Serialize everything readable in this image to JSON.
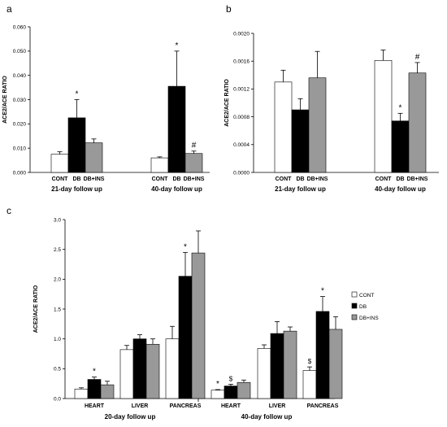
{
  "colors": {
    "CONT": "#ffffff",
    "DB": "#000000",
    "DB+INS": "#999999"
  },
  "chart_data": [
    {
      "panel": "a",
      "type": "bar",
      "ylabel": "ACE2/ACE RATIO",
      "ylim": [
        0,
        0.06
      ],
      "yticks": [
        "0.000",
        "0.010",
        "0.020",
        "0.030",
        "0.040",
        "0.050",
        "0.060"
      ],
      "group_labels": [
        "21-day follow up",
        "40-day follow up"
      ],
      "bar_labels": [
        "CONT",
        "DB",
        "DB+INS"
      ],
      "series": [
        {
          "name": "CONT",
          "values": [
            0.0075,
            0.006
          ],
          "errors": [
            0.001,
            0.0004
          ]
        },
        {
          "name": "DB",
          "values": [
            0.0225,
            0.0355
          ],
          "errors": [
            0.0075,
            0.0145
          ]
        },
        {
          "name": "DB+INS",
          "values": [
            0.0122,
            0.0078
          ],
          "errors": [
            0.0016,
            0.001
          ]
        }
      ],
      "annotations": [
        {
          "group": 0,
          "series": 1,
          "text": "*"
        },
        {
          "group": 1,
          "series": 1,
          "text": "*"
        },
        {
          "group": 1,
          "series": 2,
          "text": "#"
        }
      ]
    },
    {
      "panel": "b",
      "type": "bar",
      "ylabel": "ACE2/ACE RATIO",
      "ylim": [
        0,
        0.002
      ],
      "yticks": [
        "0.0000",
        "0.0004",
        "0.0008",
        "0.0012",
        "0.0016",
        "0.0020"
      ],
      "group_labels": [
        "21-day follow up",
        "40-day follow up"
      ],
      "bar_labels": [
        "CONT",
        "DB",
        "DB+INS"
      ],
      "series": [
        {
          "name": "CONT",
          "values": [
            0.0013,
            0.00161
          ],
          "errors": [
            0.00017,
            0.00015
          ]
        },
        {
          "name": "DB",
          "values": [
            0.0009,
            0.00074
          ],
          "errors": [
            0.00016,
            0.00011
          ]
        },
        {
          "name": "DB+INS",
          "values": [
            0.00136,
            0.00143
          ],
          "errors": [
            0.00038,
            0.00015
          ]
        }
      ],
      "annotations": [
        {
          "group": 1,
          "series": 1,
          "text": "*"
        },
        {
          "group": 1,
          "series": 2,
          "text": "#"
        }
      ]
    },
    {
      "panel": "c",
      "type": "bar",
      "ylabel": "ACE2/ACE RATIO",
      "ylim": [
        0,
        3.0
      ],
      "yticks": [
        "0.0",
        "0.5",
        "1.0",
        "1.5",
        "2.0",
        "2.5",
        "3.0"
      ],
      "categories": [
        "HEART",
        "LIVER",
        "PANCREAS",
        "HEART",
        "LIVER",
        "PANCREAS"
      ],
      "group_labels": [
        "20-day follow up",
        "40-day follow up"
      ],
      "legend": [
        "CONT",
        "DB",
        "DB+INS"
      ],
      "series": [
        {
          "name": "CONT",
          "values": [
            0.16,
            0.82,
            1.0,
            0.14,
            0.84,
            0.47
          ],
          "errors": [
            0.02,
            0.07,
            0.21,
            0.01,
            0.06,
            0.06
          ]
        },
        {
          "name": "DB",
          "values": [
            0.32,
            1.0,
            2.05,
            0.21,
            1.09,
            1.46
          ],
          "errors": [
            0.04,
            0.07,
            0.4,
            0.03,
            0.2,
            0.25
          ]
        },
        {
          "name": "DB+INS",
          "values": [
            0.23,
            0.91,
            2.44,
            0.27,
            1.13,
            1.16
          ],
          "errors": [
            0.06,
            0.09,
            0.37,
            0.04,
            0.07,
            0.21
          ]
        }
      ],
      "annotations": [
        {
          "cat": 0,
          "series": 1,
          "text": "*"
        },
        {
          "cat": 2,
          "series": 1,
          "text": "*"
        },
        {
          "cat": 3,
          "series": 0,
          "text": "*"
        },
        {
          "cat": 3,
          "series": 1,
          "text": "$"
        },
        {
          "cat": 5,
          "series": 0,
          "text": "$"
        },
        {
          "cat": 5,
          "series": 1,
          "text": "*"
        }
      ]
    }
  ]
}
